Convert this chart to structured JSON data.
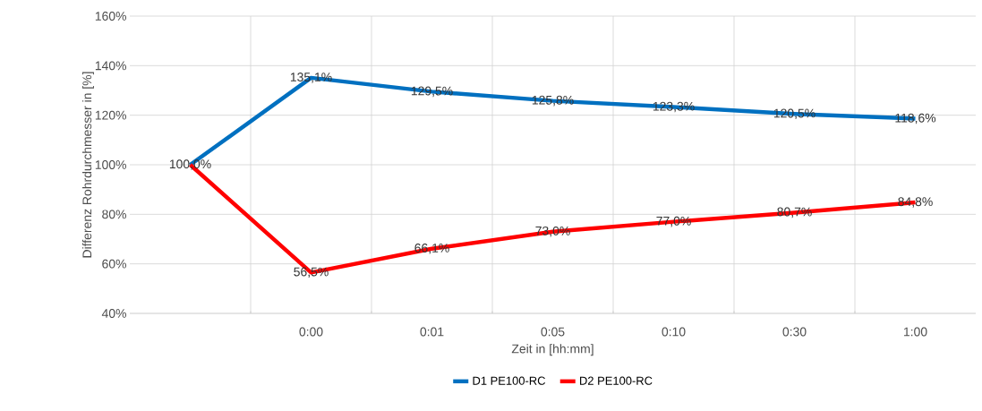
{
  "chart_data": {
    "type": "line",
    "xlabel": "Zeit in [hh:mm]",
    "ylabel": "Differenz Rohrdurchmesser in [%]",
    "categories": [
      null,
      "0:00",
      "0:01",
      "0:05",
      "0:10",
      "0:30",
      "1:00"
    ],
    "series": [
      {
        "name": "D1 PE100-RC",
        "color": "#0070c0",
        "values": [
          100.0,
          135.1,
          129.5,
          125.8,
          123.3,
          120.5,
          118.6
        ],
        "value_labels": [
          "100,0%",
          "135,1%",
          "129,5%",
          "125,8%",
          "123,3%",
          "120,5%",
          "118,6%"
        ]
      },
      {
        "name": "D2 PE100-RC",
        "color": "#ff0000",
        "values": [
          100.0,
          56.5,
          66.1,
          73.0,
          77.0,
          80.7,
          84.8
        ],
        "value_labels": [
          null,
          "56,5%",
          "66,1%",
          "73,0%",
          "77,0%",
          "80,7%",
          "84,8%"
        ]
      }
    ],
    "ylim": [
      40,
      160
    ],
    "yticks": [
      {
        "value": 40,
        "label": "40%"
      },
      {
        "value": 60,
        "label": "60%"
      },
      {
        "value": 80,
        "label": "80%"
      },
      {
        "value": 100,
        "label": "100%"
      },
      {
        "value": 120,
        "label": "120%"
      },
      {
        "value": 140,
        "label": "140%"
      },
      {
        "value": 160,
        "label": "160%"
      }
    ],
    "grid": true,
    "legend": "bottom",
    "line_style": "solid"
  }
}
